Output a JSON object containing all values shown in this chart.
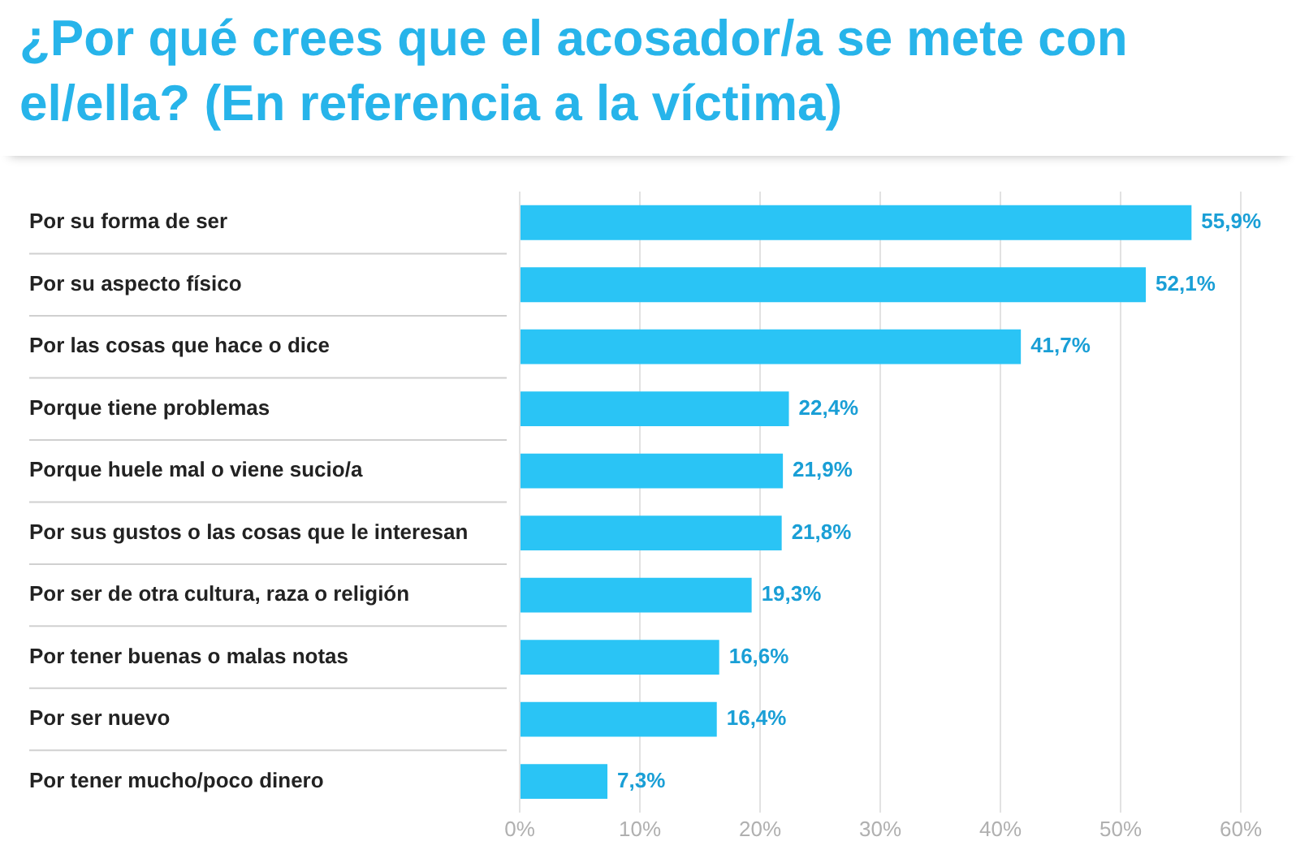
{
  "chart_data": {
    "type": "bar",
    "orientation": "horizontal",
    "title": "¿Por qué crees que el acosador/a se mete con el/ella? (En referencia a la víctima)",
    "categories": [
      "Por su forma de ser",
      "Por su aspecto físico",
      "Por las cosas que hace o dice",
      "Porque tiene problemas",
      "Porque huele mal o viene sucio/a",
      "Por sus gustos o las cosas que le interesan",
      "Por ser de otra cultura, raza o religión",
      "Por tener buenas o malas notas",
      "Por ser nuevo",
      "Por tener mucho/poco dinero"
    ],
    "values": [
      55.9,
      52.1,
      41.7,
      22.4,
      21.9,
      21.8,
      19.3,
      16.6,
      16.4,
      7.3
    ],
    "value_labels": [
      "55,9%",
      "52,1%",
      "41,7%",
      "22,4%",
      "21,9%",
      "21,8%",
      "19,3%",
      "16,6%",
      "16,4%",
      "7,3%"
    ],
    "color": "#2ac4f5",
    "xlim": [
      0,
      60
    ],
    "xticks": [
      {
        "value": 0,
        "label": "0%"
      },
      {
        "value": 10,
        "label": "10%"
      },
      {
        "value": 20,
        "label": "20%"
      },
      {
        "value": 30,
        "label": "30%"
      },
      {
        "value": 40,
        "label": "40%"
      },
      {
        "value": 50,
        "label": "50%"
      },
      {
        "value": 60,
        "label": "60%"
      }
    ],
    "grid": "x"
  }
}
